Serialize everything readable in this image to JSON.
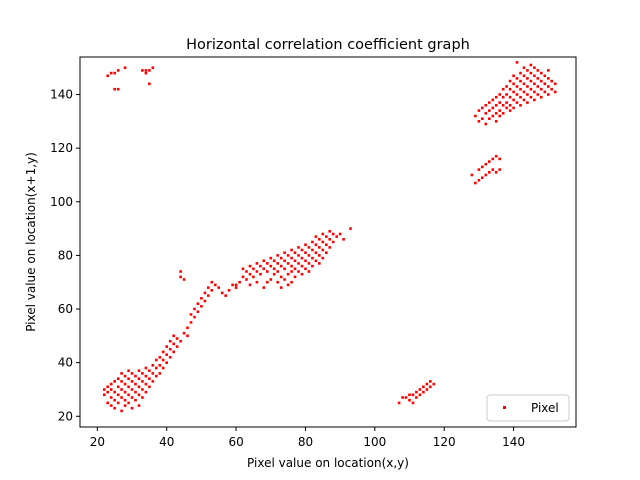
{
  "chart_data": {
    "type": "scatter",
    "title": "Horizontal correlation coefficient graph",
    "xlabel": "Pixel value on location(x,y)",
    "ylabel": "Pixel value on location(x+1,y)",
    "xlim": [
      15,
      158
    ],
    "ylim": [
      16,
      154
    ],
    "xticks": [
      20,
      40,
      60,
      80,
      100,
      120,
      140
    ],
    "yticks": [
      20,
      40,
      60,
      80,
      100,
      120,
      140
    ],
    "grid": false,
    "legend_position": "lower-right",
    "series": [
      {
        "name": "Pixel",
        "color": "#ff0000",
        "points": [
          [
            23,
            147
          ],
          [
            24,
            148
          ],
          [
            25,
            148
          ],
          [
            25,
            142
          ],
          [
            26,
            142
          ],
          [
            26,
            149
          ],
          [
            28,
            150
          ],
          [
            33,
            149
          ],
          [
            34,
            148
          ],
          [
            35,
            149
          ],
          [
            36,
            150
          ],
          [
            35,
            144
          ],
          [
            34,
            149
          ],
          [
            22,
            28
          ],
          [
            22,
            30
          ],
          [
            23,
            25
          ],
          [
            23,
            29
          ],
          [
            23,
            31
          ],
          [
            24,
            24
          ],
          [
            24,
            27
          ],
          [
            24,
            30
          ],
          [
            24,
            32
          ],
          [
            25,
            23
          ],
          [
            25,
            26
          ],
          [
            25,
            29
          ],
          [
            25,
            33
          ],
          [
            26,
            25
          ],
          [
            26,
            28
          ],
          [
            26,
            31
          ],
          [
            26,
            34
          ],
          [
            27,
            22
          ],
          [
            27,
            27
          ],
          [
            27,
            30
          ],
          [
            27,
            33
          ],
          [
            27,
            36
          ],
          [
            28,
            24
          ],
          [
            28,
            26
          ],
          [
            28,
            29
          ],
          [
            28,
            32
          ],
          [
            28,
            35
          ],
          [
            29,
            25
          ],
          [
            29,
            28
          ],
          [
            29,
            31
          ],
          [
            29,
            34
          ],
          [
            29,
            37
          ],
          [
            30,
            23
          ],
          [
            30,
            27
          ],
          [
            30,
            30
          ],
          [
            30,
            33
          ],
          [
            30,
            36
          ],
          [
            31,
            26
          ],
          [
            31,
            29
          ],
          [
            31,
            32
          ],
          [
            31,
            35
          ],
          [
            32,
            24
          ],
          [
            32,
            28
          ],
          [
            32,
            31
          ],
          [
            32,
            34
          ],
          [
            32,
            37
          ],
          [
            33,
            27
          ],
          [
            33,
            30
          ],
          [
            33,
            33
          ],
          [
            33,
            36
          ],
          [
            34,
            29
          ],
          [
            34,
            32
          ],
          [
            34,
            35
          ],
          [
            34,
            38
          ],
          [
            35,
            31
          ],
          [
            35,
            34
          ],
          [
            35,
            37
          ],
          [
            36,
            33
          ],
          [
            36,
            36
          ],
          [
            36,
            39
          ],
          [
            37,
            35
          ],
          [
            37,
            38
          ],
          [
            37,
            41
          ],
          [
            38,
            36
          ],
          [
            38,
            39
          ],
          [
            38,
            42
          ],
          [
            39,
            38
          ],
          [
            39,
            41
          ],
          [
            39,
            44
          ],
          [
            40,
            40
          ],
          [
            40,
            43
          ],
          [
            40,
            46
          ],
          [
            41,
            42
          ],
          [
            41,
            45
          ],
          [
            41,
            48
          ],
          [
            42,
            44
          ],
          [
            42,
            47
          ],
          [
            42,
            50
          ],
          [
            43,
            46
          ],
          [
            43,
            49
          ],
          [
            44,
            72
          ],
          [
            44,
            74
          ],
          [
            45,
            71
          ],
          [
            44,
            48
          ],
          [
            45,
            51
          ],
          [
            46,
            53
          ],
          [
            46,
            50
          ],
          [
            47,
            55
          ],
          [
            47,
            58
          ],
          [
            48,
            57
          ],
          [
            48,
            60
          ],
          [
            49,
            59
          ],
          [
            49,
            62
          ],
          [
            50,
            61
          ],
          [
            50,
            64
          ],
          [
            51,
            63
          ],
          [
            51,
            66
          ],
          [
            52,
            65
          ],
          [
            52,
            68
          ],
          [
            53,
            67
          ],
          [
            53,
            70
          ],
          [
            54,
            69
          ],
          [
            55,
            68
          ],
          [
            56,
            66
          ],
          [
            57,
            65
          ],
          [
            58,
            67
          ],
          [
            59,
            69
          ],
          [
            60,
            68
          ],
          [
            61,
            70
          ],
          [
            62,
            72
          ],
          [
            62,
            75
          ],
          [
            63,
            71
          ],
          [
            63,
            74
          ],
          [
            64,
            73
          ],
          [
            64,
            76
          ],
          [
            65,
            72
          ],
          [
            65,
            75
          ],
          [
            66,
            74
          ],
          [
            66,
            77
          ],
          [
            67,
            73
          ],
          [
            67,
            76
          ],
          [
            68,
            75
          ],
          [
            68,
            78
          ],
          [
            69,
            74
          ],
          [
            69,
            77
          ],
          [
            70,
            71
          ],
          [
            70,
            76
          ],
          [
            70,
            79
          ],
          [
            71,
            73
          ],
          [
            71,
            75
          ],
          [
            71,
            78
          ],
          [
            72,
            70
          ],
          [
            72,
            74
          ],
          [
            72,
            77
          ],
          [
            72,
            80
          ],
          [
            73,
            72
          ],
          [
            73,
            76
          ],
          [
            73,
            79
          ],
          [
            74,
            71
          ],
          [
            74,
            75
          ],
          [
            74,
            78
          ],
          [
            74,
            81
          ],
          [
            75,
            73
          ],
          [
            75,
            77
          ],
          [
            75,
            80
          ],
          [
            76,
            70
          ],
          [
            76,
            74
          ],
          [
            76,
            76
          ],
          [
            76,
            79
          ],
          [
            76,
            82
          ],
          [
            77,
            72
          ],
          [
            77,
            75
          ],
          [
            77,
            78
          ],
          [
            77,
            81
          ],
          [
            78,
            74
          ],
          [
            78,
            77
          ],
          [
            78,
            80
          ],
          [
            78,
            83
          ],
          [
            79,
            73
          ],
          [
            79,
            76
          ],
          [
            79,
            79
          ],
          [
            79,
            82
          ],
          [
            80,
            75
          ],
          [
            80,
            78
          ],
          [
            80,
            81
          ],
          [
            80,
            84
          ],
          [
            81,
            74
          ],
          [
            81,
            77
          ],
          [
            81,
            80
          ],
          [
            81,
            83
          ],
          [
            82,
            76
          ],
          [
            82,
            79
          ],
          [
            82,
            82
          ],
          [
            82,
            85
          ],
          [
            83,
            78
          ],
          [
            83,
            81
          ],
          [
            83,
            84
          ],
          [
            83,
            87
          ],
          [
            84,
            77
          ],
          [
            84,
            80
          ],
          [
            84,
            83
          ],
          [
            84,
            86
          ],
          [
            85,
            79
          ],
          [
            85,
            82
          ],
          [
            85,
            85
          ],
          [
            85,
            88
          ],
          [
            86,
            81
          ],
          [
            86,
            84
          ],
          [
            86,
            87
          ],
          [
            87,
            83
          ],
          [
            87,
            86
          ],
          [
            87,
            89
          ],
          [
            88,
            85
          ],
          [
            88,
            88
          ],
          [
            89,
            87
          ],
          [
            90,
            88
          ],
          [
            91,
            86
          ],
          [
            93,
            90
          ],
          [
            68,
            68
          ],
          [
            69,
            70
          ],
          [
            73,
            68
          ],
          [
            75,
            69
          ],
          [
            66,
            70
          ],
          [
            64,
            69
          ],
          [
            60,
            69
          ],
          [
            107,
            25
          ],
          [
            108,
            27
          ],
          [
            109,
            27
          ],
          [
            110,
            26
          ],
          [
            110,
            28
          ],
          [
            111,
            25
          ],
          [
            111,
            28
          ],
          [
            112,
            27
          ],
          [
            112,
            29
          ],
          [
            113,
            28
          ],
          [
            113,
            30
          ],
          [
            114,
            29
          ],
          [
            114,
            31
          ],
          [
            115,
            30
          ],
          [
            115,
            32
          ],
          [
            116,
            31
          ],
          [
            116,
            33
          ],
          [
            117,
            32
          ],
          [
            128,
            110
          ],
          [
            129,
            107
          ],
          [
            130,
            108
          ],
          [
            130,
            112
          ],
          [
            131,
            109
          ],
          [
            131,
            113
          ],
          [
            132,
            110
          ],
          [
            132,
            114
          ],
          [
            133,
            111
          ],
          [
            133,
            115
          ],
          [
            134,
            112
          ],
          [
            134,
            116
          ],
          [
            135,
            111
          ],
          [
            135,
            117
          ],
          [
            136,
            112
          ],
          [
            136,
            116
          ],
          [
            129,
            132
          ],
          [
            130,
            130
          ],
          [
            130,
            134
          ],
          [
            131,
            131
          ],
          [
            131,
            135
          ],
          [
            132,
            129
          ],
          [
            132,
            133
          ],
          [
            132,
            136
          ],
          [
            133,
            131
          ],
          [
            133,
            134
          ],
          [
            133,
            137
          ],
          [
            134,
            132
          ],
          [
            134,
            135
          ],
          [
            134,
            138
          ],
          [
            135,
            130
          ],
          [
            135,
            133
          ],
          [
            135,
            136
          ],
          [
            135,
            139
          ],
          [
            136,
            132
          ],
          [
            136,
            134
          ],
          [
            136,
            137
          ],
          [
            136,
            140
          ],
          [
            137,
            133
          ],
          [
            137,
            136
          ],
          [
            137,
            139
          ],
          [
            137,
            142
          ],
          [
            138,
            135
          ],
          [
            138,
            137
          ],
          [
            138,
            140
          ],
          [
            138,
            143
          ],
          [
            139,
            134
          ],
          [
            139,
            136
          ],
          [
            139,
            139
          ],
          [
            139,
            142
          ],
          [
            139,
            145
          ],
          [
            140,
            135
          ],
          [
            140,
            138
          ],
          [
            140,
            141
          ],
          [
            140,
            144
          ],
          [
            140,
            147
          ],
          [
            141,
            137
          ],
          [
            141,
            140
          ],
          [
            141,
            143
          ],
          [
            141,
            146
          ],
          [
            141,
            152
          ],
          [
            142,
            136
          ],
          [
            142,
            139
          ],
          [
            142,
            142
          ],
          [
            142,
            145
          ],
          [
            142,
            148
          ],
          [
            143,
            138
          ],
          [
            143,
            141
          ],
          [
            143,
            144
          ],
          [
            143,
            147
          ],
          [
            143,
            150
          ],
          [
            144,
            137
          ],
          [
            144,
            140
          ],
          [
            144,
            143
          ],
          [
            144,
            146
          ],
          [
            144,
            149
          ],
          [
            145,
            139
          ],
          [
            145,
            142
          ],
          [
            145,
            145
          ],
          [
            145,
            148
          ],
          [
            145,
            151
          ],
          [
            146,
            138
          ],
          [
            146,
            141
          ],
          [
            146,
            144
          ],
          [
            146,
            147
          ],
          [
            146,
            150
          ],
          [
            147,
            140
          ],
          [
            147,
            143
          ],
          [
            147,
            146
          ],
          [
            147,
            149
          ],
          [
            148,
            139
          ],
          [
            148,
            142
          ],
          [
            148,
            145
          ],
          [
            148,
            148
          ],
          [
            149,
            141
          ],
          [
            149,
            144
          ],
          [
            149,
            147
          ],
          [
            150,
            140
          ],
          [
            150,
            143
          ],
          [
            150,
            146
          ],
          [
            150,
            149
          ],
          [
            151,
            142
          ],
          [
            151,
            145
          ],
          [
            152,
            144
          ],
          [
            152,
            141
          ]
        ]
      }
    ]
  }
}
